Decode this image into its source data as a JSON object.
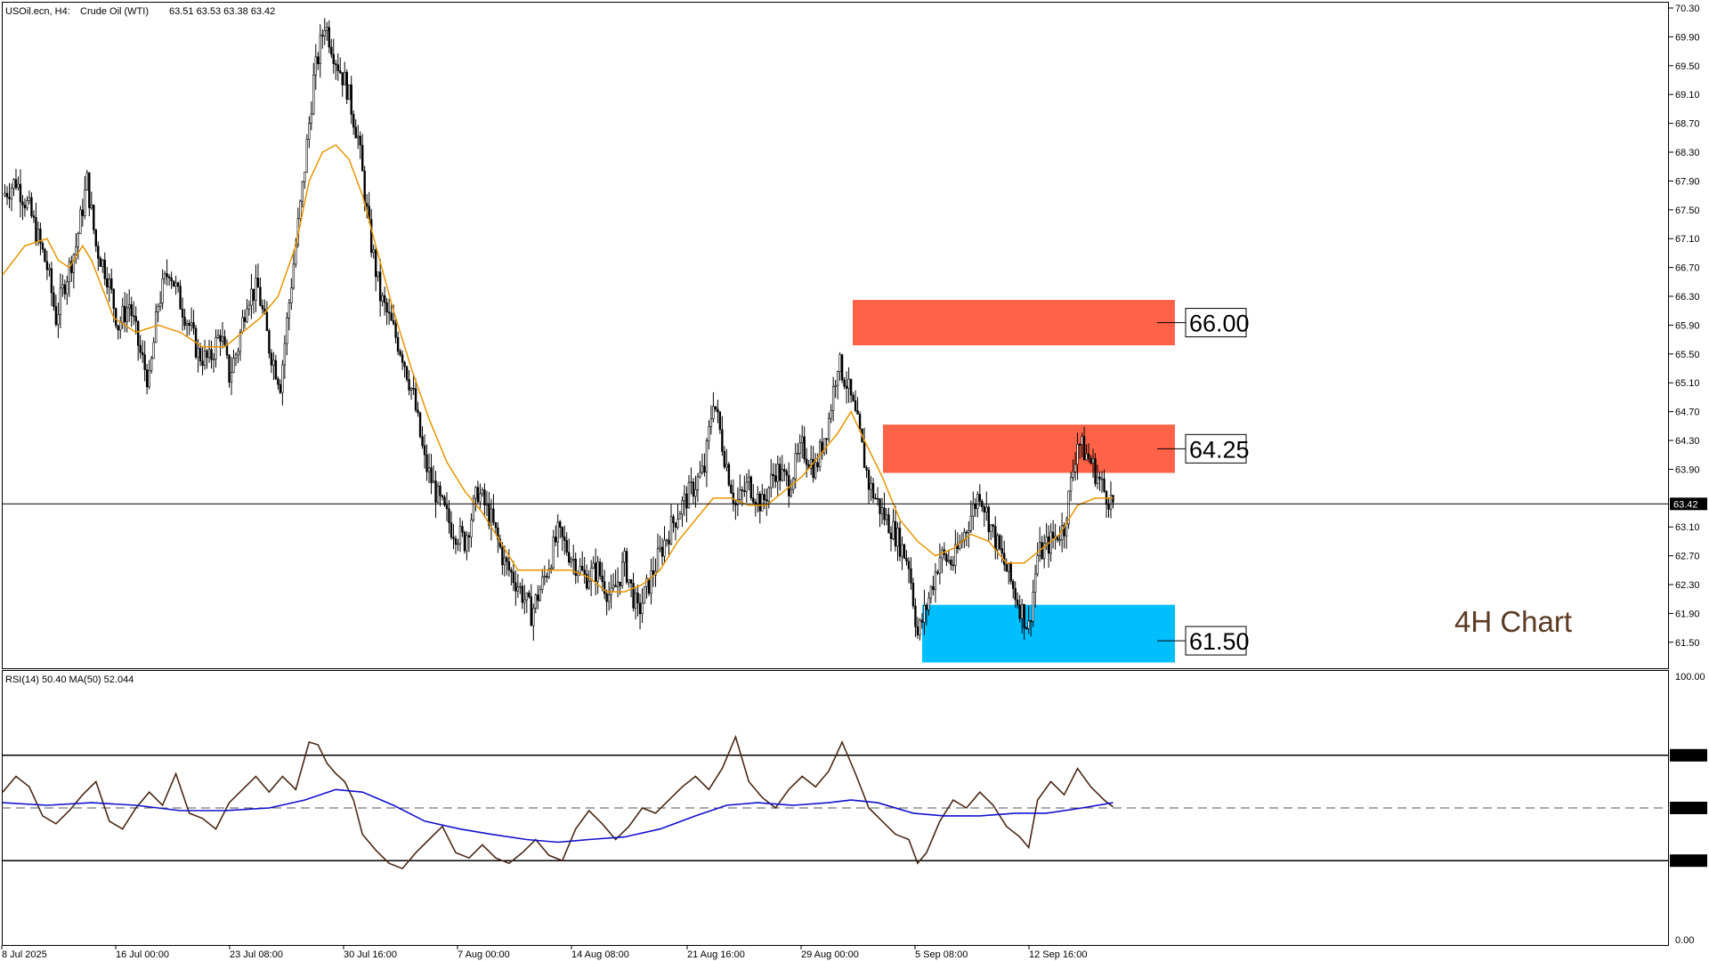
{
  "header": {
    "symbol": "USOil.ecn, H4:",
    "instrument": "Crude Oil (WTI)",
    "ohlc": "63.51 63.53 63.38 63.42"
  },
  "chart_label": "4H Chart",
  "current_price_label": "63.42",
  "colors": {
    "resistance": "#ff6347",
    "support": "#00bfff",
    "ma_line": "#e69500",
    "rsi_line": "#4a2a18",
    "rsi_ma_line": "#1111cc",
    "candle": "#000000"
  },
  "chart_data": [
    {
      "type": "candlestick",
      "price_axis": {
        "min": 61.3,
        "max": 70.3,
        "tick_labels": [
          "70.30",
          "69.90",
          "69.50",
          "69.10",
          "68.70",
          "68.30",
          "67.90",
          "67.50",
          "67.10",
          "66.70",
          "66.30",
          "65.90",
          "65.50",
          "65.10",
          "64.70",
          "64.30",
          "63.90",
          "63.10",
          "62.70",
          "62.30",
          "61.90",
          "61.50"
        ]
      },
      "time_axis": {
        "labels": [
          "8 Jul 2025",
          "16 Jul 00:00",
          "23 Jul 08:00",
          "30 Jul 16:00",
          "7 Aug 00:00",
          "14 Aug 08:00",
          "21 Aug 16:00",
          "29 Aug 00:00",
          "5 Sep 08:00",
          "12 Sep 16:00"
        ]
      },
      "current_price": 63.42,
      "zones": [
        {
          "kind": "resistance",
          "label": "66.00",
          "top": 66.25,
          "bottom": 65.62
        },
        {
          "kind": "resistance",
          "label": "64.25",
          "top": 64.52,
          "bottom": 63.85
        },
        {
          "kind": "support",
          "label": "61.50",
          "top": 62.02,
          "bottom": 61.22
        }
      ],
      "close_path": [
        [
          0,
          67.7
        ],
        [
          6,
          67.9
        ],
        [
          12,
          67.5
        ],
        [
          20,
          66.7
        ],
        [
          24,
          66.0
        ],
        [
          28,
          66.5
        ],
        [
          33,
          67.0
        ],
        [
          38,
          67.9
        ],
        [
          42,
          67.0
        ],
        [
          47,
          66.6
        ],
        [
          52,
          65.9
        ],
        [
          57,
          66.2
        ],
        [
          62,
          65.5
        ],
        [
          66,
          65.1
        ],
        [
          70,
          66.2
        ],
        [
          75,
          66.7
        ],
        [
          79,
          66.3
        ],
        [
          84,
          65.9
        ],
        [
          88,
          65.5
        ],
        [
          93,
          65.4
        ],
        [
          98,
          65.8
        ],
        [
          102,
          65.2
        ],
        [
          106,
          65.6
        ],
        [
          110,
          66.3
        ],
        [
          115,
          66.4
        ],
        [
          120,
          65.6
        ],
        [
          125,
          65.1
        ],
        [
          130,
          66.5
        ],
        [
          135,
          67.8
        ],
        [
          140,
          69.3
        ],
        [
          145,
          70.1
        ],
        [
          150,
          69.6
        ],
        [
          155,
          69.2
        ],
        [
          160,
          68.5
        ],
        [
          165,
          67.2
        ],
        [
          170,
          66.3
        ],
        [
          175,
          65.9
        ],
        [
          180,
          65.5
        ],
        [
          185,
          64.9
        ],
        [
          190,
          64.0
        ],
        [
          196,
          63.5
        ],
        [
          202,
          63.1
        ],
        [
          208,
          62.9
        ],
        [
          214,
          63.6
        ],
        [
          220,
          63.2
        ],
        [
          226,
          62.6
        ],
        [
          232,
          62.3
        ],
        [
          238,
          61.9
        ],
        [
          244,
          62.4
        ],
        [
          250,
          63.0
        ],
        [
          256,
          62.7
        ],
        [
          262,
          62.4
        ],
        [
          268,
          62.5
        ],
        [
          274,
          62.1
        ],
        [
          280,
          62.6
        ],
        [
          286,
          61.9
        ],
        [
          292,
          62.4
        ],
        [
          298,
          62.9
        ],
        [
          304,
          63.3
        ],
        [
          310,
          63.6
        ],
        [
          316,
          63.9
        ],
        [
          320,
          64.9
        ],
        [
          325,
          64.1
        ],
        [
          330,
          63.4
        ],
        [
          336,
          63.7
        ],
        [
          342,
          63.4
        ],
        [
          348,
          63.9
        ],
        [
          354,
          63.7
        ],
        [
          360,
          64.2
        ],
        [
          366,
          63.9
        ],
        [
          372,
          64.6
        ],
        [
          376,
          65.4
        ],
        [
          380,
          65.1
        ],
        [
          385,
          64.5
        ],
        [
          390,
          63.7
        ],
        [
          396,
          63.3
        ],
        [
          402,
          63.0
        ],
        [
          408,
          62.6
        ],
        [
          412,
          61.6
        ],
        [
          416,
          62.0
        ],
        [
          422,
          62.7
        ],
        [
          428,
          62.6
        ],
        [
          434,
          63.1
        ],
        [
          440,
          63.6
        ],
        [
          446,
          63.0
        ],
        [
          452,
          62.5
        ],
        [
          458,
          62.0
        ],
        [
          462,
          61.7
        ],
        [
          466,
          62.7
        ],
        [
          472,
          62.9
        ],
        [
          478,
          63.1
        ],
        [
          484,
          64.3
        ],
        [
          490,
          64.0
        ],
        [
          496,
          63.6
        ],
        [
          500,
          63.42
        ]
      ],
      "ma_path": [
        [
          0,
          66.6
        ],
        [
          10,
          67.0
        ],
        [
          20,
          67.1
        ],
        [
          25,
          66.8
        ],
        [
          30,
          66.7
        ],
        [
          36,
          67.0
        ],
        [
          40,
          66.8
        ],
        [
          50,
          66.0
        ],
        [
          60,
          65.8
        ],
        [
          70,
          65.9
        ],
        [
          80,
          65.8
        ],
        [
          90,
          65.6
        ],
        [
          100,
          65.6
        ],
        [
          108,
          65.8
        ],
        [
          116,
          66.0
        ],
        [
          124,
          66.3
        ],
        [
          132,
          67.0
        ],
        [
          138,
          67.9
        ],
        [
          144,
          68.3
        ],
        [
          150,
          68.4
        ],
        [
          156,
          68.2
        ],
        [
          162,
          67.7
        ],
        [
          168,
          67.0
        ],
        [
          176,
          66.1
        ],
        [
          184,
          65.3
        ],
        [
          192,
          64.6
        ],
        [
          200,
          64.0
        ],
        [
          208,
          63.6
        ],
        [
          216,
          63.3
        ],
        [
          224,
          62.9
        ],
        [
          232,
          62.5
        ],
        [
          240,
          62.5
        ],
        [
          248,
          62.5
        ],
        [
          256,
          62.5
        ],
        [
          264,
          62.4
        ],
        [
          272,
          62.2
        ],
        [
          280,
          62.2
        ],
        [
          288,
          62.3
        ],
        [
          296,
          62.5
        ],
        [
          304,
          62.9
        ],
        [
          312,
          63.2
        ],
        [
          320,
          63.5
        ],
        [
          328,
          63.5
        ],
        [
          336,
          63.4
        ],
        [
          344,
          63.4
        ],
        [
          352,
          63.6
        ],
        [
          360,
          63.8
        ],
        [
          368,
          64.1
        ],
        [
          376,
          64.4
        ],
        [
          382,
          64.7
        ],
        [
          388,
          64.3
        ],
        [
          396,
          63.8
        ],
        [
          404,
          63.2
        ],
        [
          412,
          62.9
        ],
        [
          420,
          62.7
        ],
        [
          428,
          62.8
        ],
        [
          436,
          63.0
        ],
        [
          444,
          62.9
        ],
        [
          452,
          62.6
        ],
        [
          460,
          62.6
        ],
        [
          468,
          62.8
        ],
        [
          476,
          63.0
        ],
        [
          484,
          63.4
        ],
        [
          492,
          63.5
        ],
        [
          500,
          63.5
        ]
      ]
    },
    {
      "type": "line",
      "header": "RSI(14) 50.40 MA(50) 52.044",
      "ylim": [
        0,
        100
      ],
      "tick_labels": [
        "100.00",
        "70.00",
        "50.00",
        "30.00",
        "0.00"
      ],
      "levels": [
        70,
        50,
        30
      ],
      "rsi_path": [
        [
          0,
          56
        ],
        [
          6,
          62
        ],
        [
          12,
          58
        ],
        [
          18,
          47
        ],
        [
          24,
          44
        ],
        [
          30,
          49
        ],
        [
          36,
          55
        ],
        [
          42,
          60
        ],
        [
          48,
          45
        ],
        [
          54,
          42
        ],
        [
          60,
          50
        ],
        [
          66,
          56
        ],
        [
          72,
          51
        ],
        [
          78,
          63
        ],
        [
          84,
          48
        ],
        [
          90,
          46
        ],
        [
          96,
          42
        ],
        [
          102,
          52
        ],
        [
          108,
          57
        ],
        [
          114,
          62
        ],
        [
          120,
          56
        ],
        [
          126,
          62
        ],
        [
          132,
          57
        ],
        [
          138,
          75
        ],
        [
          142,
          74
        ],
        [
          146,
          67
        ],
        [
          150,
          63
        ],
        [
          154,
          60
        ],
        [
          158,
          53
        ],
        [
          162,
          40
        ],
        [
          168,
          34
        ],
        [
          174,
          29
        ],
        [
          180,
          27
        ],
        [
          186,
          33
        ],
        [
          192,
          38
        ],
        [
          198,
          43
        ],
        [
          204,
          33
        ],
        [
          210,
          31
        ],
        [
          216,
          36
        ],
        [
          222,
          31
        ],
        [
          228,
          29
        ],
        [
          234,
          33
        ],
        [
          240,
          38
        ],
        [
          246,
          32
        ],
        [
          252,
          30
        ],
        [
          258,
          42
        ],
        [
          264,
          49
        ],
        [
          270,
          44
        ],
        [
          276,
          38
        ],
        [
          282,
          43
        ],
        [
          288,
          50
        ],
        [
          294,
          48
        ],
        [
          300,
          53
        ],
        [
          306,
          58
        ],
        [
          312,
          62
        ],
        [
          318,
          57
        ],
        [
          324,
          65
        ],
        [
          330,
          77
        ],
        [
          336,
          60
        ],
        [
          342,
          54
        ],
        [
          348,
          50
        ],
        [
          354,
          57
        ],
        [
          360,
          62
        ],
        [
          366,
          58
        ],
        [
          372,
          64
        ],
        [
          378,
          75
        ],
        [
          384,
          63
        ],
        [
          390,
          50
        ],
        [
          396,
          45
        ],
        [
          402,
          40
        ],
        [
          408,
          38
        ],
        [
          412,
          29
        ],
        [
          416,
          33
        ],
        [
          422,
          45
        ],
        [
          428,
          53
        ],
        [
          434,
          50
        ],
        [
          440,
          56
        ],
        [
          446,
          51
        ],
        [
          452,
          43
        ],
        [
          458,
          39
        ],
        [
          462,
          35
        ],
        [
          466,
          53
        ],
        [
          472,
          60
        ],
        [
          478,
          55
        ],
        [
          484,
          65
        ],
        [
          490,
          58
        ],
        [
          496,
          53
        ],
        [
          500,
          50.4
        ]
      ],
      "rsi_ma_path": [
        [
          0,
          52
        ],
        [
          20,
          51
        ],
        [
          40,
          52
        ],
        [
          60,
          51
        ],
        [
          80,
          49
        ],
        [
          100,
          49
        ],
        [
          120,
          50
        ],
        [
          136,
          53
        ],
        [
          150,
          57
        ],
        [
          162,
          56
        ],
        [
          176,
          51
        ],
        [
          190,
          45
        ],
        [
          206,
          42
        ],
        [
          220,
          40
        ],
        [
          236,
          38
        ],
        [
          250,
          37
        ],
        [
          264,
          38
        ],
        [
          280,
          39
        ],
        [
          296,
          42
        ],
        [
          312,
          47
        ],
        [
          326,
          51
        ],
        [
          340,
          52
        ],
        [
          356,
          51
        ],
        [
          372,
          52
        ],
        [
          382,
          53
        ],
        [
          394,
          52
        ],
        [
          410,
          48
        ],
        [
          424,
          47
        ],
        [
          440,
          47
        ],
        [
          456,
          48
        ],
        [
          470,
          48
        ],
        [
          486,
          50
        ],
        [
          500,
          52
        ]
      ]
    }
  ]
}
